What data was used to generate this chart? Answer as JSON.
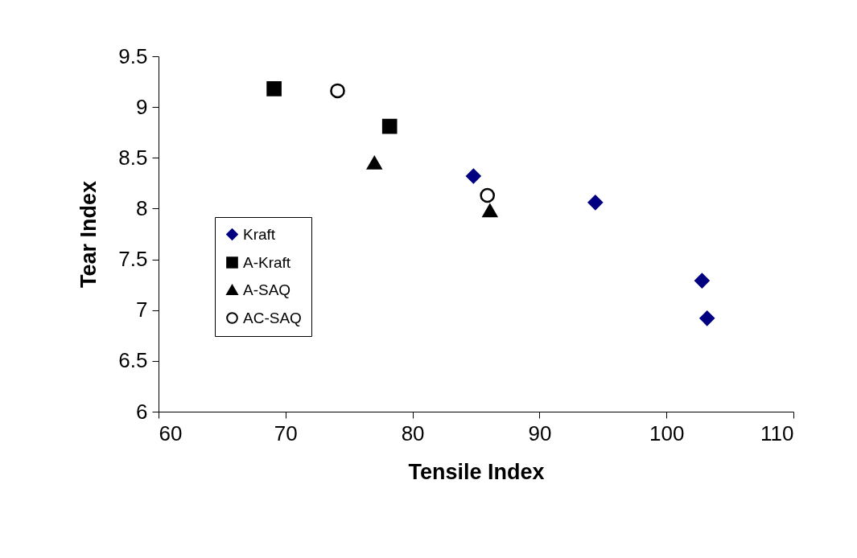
{
  "chart_data": {
    "type": "scatter",
    "xlabel": "Tensile Index",
    "ylabel": "Tear Index",
    "xlim": [
      60,
      110
    ],
    "xticks": [
      60,
      70,
      80,
      90,
      100,
      110
    ],
    "ylim": [
      6,
      9.5
    ],
    "yticks": [
      6,
      6.5,
      7,
      7.5,
      8,
      8.5,
      9,
      9.5
    ],
    "grid": false,
    "legend": "left",
    "series": [
      {
        "name": "Kraft",
        "color": "#000080",
        "marker": "diamond",
        "x": [
          84.8,
          94.4,
          102.8,
          103.2
        ],
        "values": [
          8.32,
          8.06,
          7.29,
          6.92
        ]
      },
      {
        "name": "A-Kraft",
        "color": "#000000",
        "marker": "square",
        "x": [
          69.1,
          78.2
        ],
        "values": [
          9.18,
          8.81
        ]
      },
      {
        "name": "A-SAQ",
        "color": "#000000",
        "marker": "triangle",
        "x": [
          77.0,
          86.1
        ],
        "values": [
          8.45,
          7.98
        ]
      },
      {
        "name": "AC-SAQ",
        "color": "#000000",
        "marker": "circle",
        "x": [
          74.1,
          85.9
        ],
        "values": [
          9.16,
          8.13
        ]
      }
    ]
  }
}
